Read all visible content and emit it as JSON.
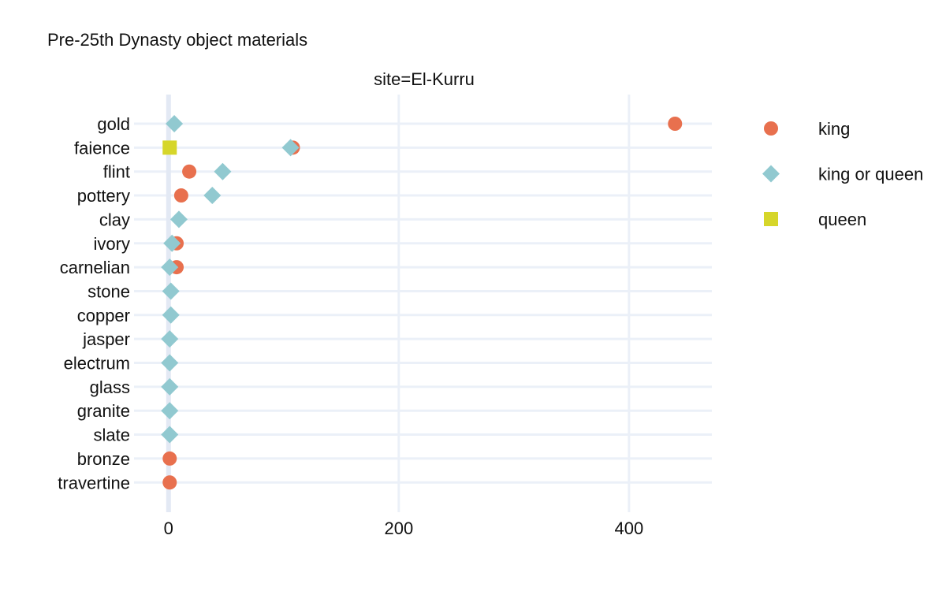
{
  "chart_data": {
    "type": "scatter",
    "title": "Pre-25th Dynasty object materials",
    "facet_label": "site=El-Kurru",
    "xlabel": "",
    "ylabel": "",
    "xlim": [
      -30,
      472
    ],
    "x_ticks": [
      0,
      200,
      400
    ],
    "grid": true,
    "legend_placement": "right",
    "categories": [
      "gold",
      "faience",
      "flint",
      "pottery",
      "clay",
      "ivory",
      "carnelian",
      "stone",
      "copper",
      "jasper",
      "electrum",
      "glass",
      "granite",
      "slate",
      "bronze",
      "travertine"
    ],
    "series": [
      {
        "name": "king",
        "shape": "circle",
        "color": "#e8704e",
        "points": [
          {
            "category": "gold",
            "x": 440
          },
          {
            "category": "faience",
            "x": 108
          },
          {
            "category": "flint",
            "x": 18
          },
          {
            "category": "pottery",
            "x": 11
          },
          {
            "category": "ivory",
            "x": 7
          },
          {
            "category": "carnelian",
            "x": 7
          },
          {
            "category": "bronze",
            "x": 1
          },
          {
            "category": "travertine",
            "x": 1
          }
        ]
      },
      {
        "name": "king or queen",
        "shape": "diamond",
        "color": "#91c9d0",
        "points": [
          {
            "category": "gold",
            "x": 5
          },
          {
            "category": "faience",
            "x": 106
          },
          {
            "category": "flint",
            "x": 47
          },
          {
            "category": "pottery",
            "x": 38
          },
          {
            "category": "clay",
            "x": 9
          },
          {
            "category": "ivory",
            "x": 3
          },
          {
            "category": "carnelian",
            "x": 1
          },
          {
            "category": "stone",
            "x": 2
          },
          {
            "category": "copper",
            "x": 2
          },
          {
            "category": "jasper",
            "x": 1
          },
          {
            "category": "electrum",
            "x": 1
          },
          {
            "category": "glass",
            "x": 1
          },
          {
            "category": "granite",
            "x": 1
          },
          {
            "category": "slate",
            "x": 1
          }
        ]
      },
      {
        "name": "queen",
        "shape": "square",
        "color": "#d6d62a",
        "points": [
          {
            "category": "faience",
            "x": 1
          }
        ]
      }
    ]
  }
}
